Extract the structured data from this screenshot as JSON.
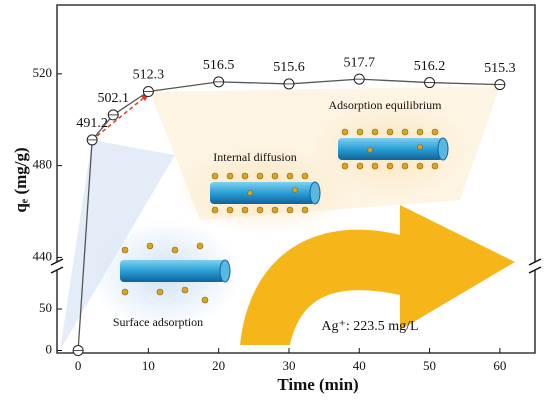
{
  "chart_data": {
    "type": "line",
    "x_label": "Time (min)",
    "y_label": "qₑ (mg/g)",
    "x": [
      0,
      2,
      5,
      10,
      20,
      30,
      40,
      50,
      60
    ],
    "values": [
      0,
      491.2,
      502.1,
      512.3,
      516.5,
      515.6,
      517.7,
      516.2,
      515.3
    ],
    "color": "#555555",
    "xlim": [
      -3,
      65
    ],
    "xticks": [
      0,
      10,
      20,
      30,
      40,
      50,
      60
    ],
    "y_segments": [
      {
        "ylim": [
          -3,
          97
        ],
        "yticks": [
          0,
          50
        ]
      },
      {
        "ylim": [
          438,
          550
        ],
        "yticks": [
          440,
          480,
          520
        ]
      }
    ],
    "annotations": [
      "Adsorption equilibrium",
      "Internal diffusion",
      "Surface adsorption",
      "Ag⁺: 223.5 mg/L"
    ]
  }
}
